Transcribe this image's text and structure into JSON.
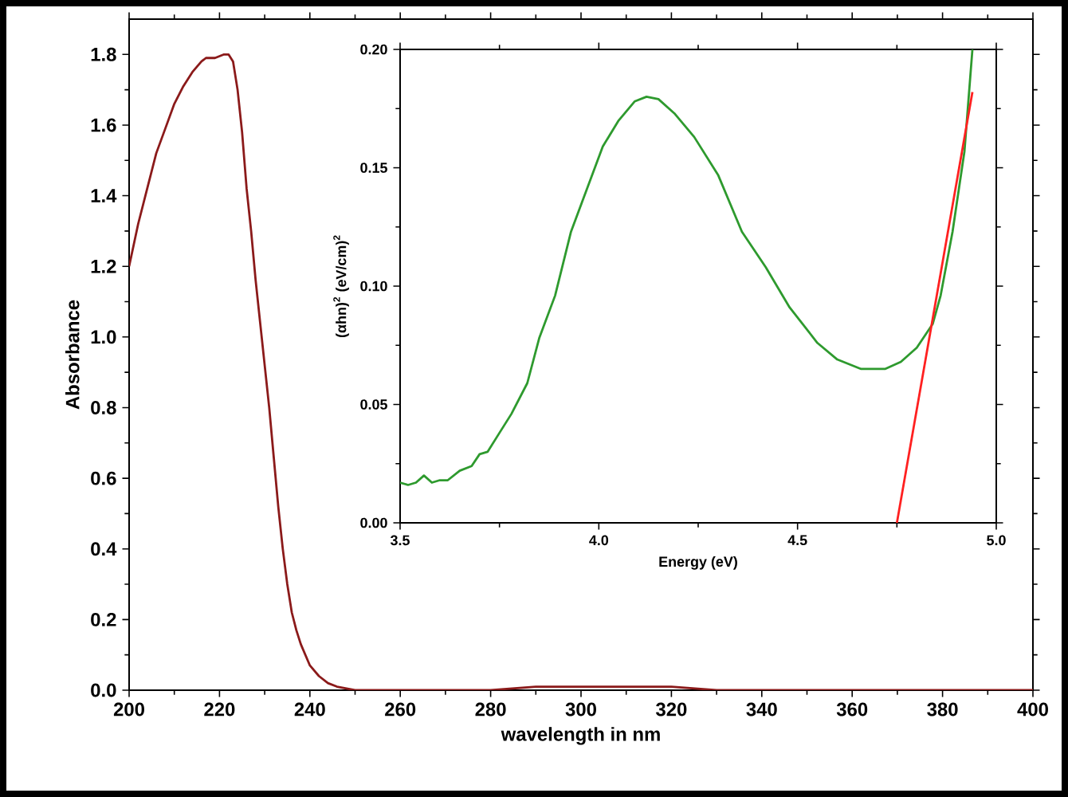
{
  "chart_data": [
    {
      "type": "line",
      "xlabel": "wavelength in nm",
      "ylabel": "Absorbance",
      "xlim": [
        200,
        400
      ],
      "ylim": [
        0,
        1.9
      ],
      "xticks": [
        200,
        220,
        240,
        260,
        280,
        300,
        320,
        340,
        360,
        380,
        400
      ],
      "yticks": [
        {
          "value": 0,
          "label": "0.0"
        },
        0.2,
        0.4,
        0.6,
        0.8,
        {
          "value": 1,
          "label": "1.0"
        },
        1.2,
        1.4,
        1.6,
        1.8
      ],
      "marker": "none",
      "series": [
        {
          "color": "#8b1a1a",
          "x": [
            200,
            202,
            204,
            206,
            208,
            210,
            212,
            214,
            216,
            217,
            219,
            221,
            222,
            223,
            224,
            225,
            226,
            227,
            228,
            229,
            230,
            231,
            232,
            233,
            234,
            235,
            236,
            237,
            238,
            239,
            240,
            242,
            244,
            246,
            250,
            280,
            290,
            320,
            330,
            400
          ],
          "values": [
            1.2,
            1.32,
            1.42,
            1.52,
            1.59,
            1.66,
            1.71,
            1.75,
            1.78,
            1.79,
            1.79,
            1.8,
            1.8,
            1.78,
            1.7,
            1.58,
            1.42,
            1.3,
            1.16,
            1.04,
            0.92,
            0.8,
            0.66,
            0.52,
            0.4,
            0.3,
            0.22,
            0.17,
            0.13,
            0.1,
            0.07,
            0.04,
            0.02,
            0.01,
            0,
            0,
            0.01,
            0.01,
            0,
            0
          ]
        }
      ]
    },
    {
      "type": "line",
      "xlabel": "Energy (eV)",
      "ylabel": "(αhn)$^{2}$ (eV/cm)$^{2}$",
      "xlim": [
        3.5,
        5.0
      ],
      "ylim": [
        0,
        0.2
      ],
      "xticks": [
        3.5,
        {
          "value": 4,
          "label": "4.0"
        },
        4.5,
        {
          "value": 5,
          "label": "5.0"
        }
      ],
      "yticks": [
        {
          "value": 0,
          "label": "0.00"
        },
        {
          "value": 0.05,
          "label": "0.05"
        },
        {
          "value": 0.1,
          "label": "0.10"
        },
        {
          "value": 0.15,
          "label": "0.15"
        },
        {
          "value": 0.2,
          "label": "0.20"
        }
      ],
      "marker": "none",
      "series": [
        {
          "color": "#2e9a2e",
          "x": [
            3.5,
            3.52,
            3.54,
            3.56,
            3.58,
            3.6,
            3.62,
            3.65,
            3.68,
            3.7,
            3.72,
            3.75,
            3.78,
            3.82,
            3.85,
            3.89,
            3.93,
            3.97,
            4.01,
            4.05,
            4.09,
            4.12,
            4.15,
            4.19,
            4.24,
            4.3,
            4.36,
            4.42,
            4.48,
            4.55,
            4.6,
            4.66,
            4.72,
            4.76,
            4.8,
            4.84,
            4.86,
            4.89,
            4.92,
            4.94
          ],
          "values": [
            0.017,
            0.016,
            0.017,
            0.02,
            0.017,
            0.018,
            0.018,
            0.022,
            0.024,
            0.029,
            0.03,
            0.038,
            0.046,
            0.059,
            0.078,
            0.096,
            0.123,
            0.141,
            0.159,
            0.17,
            0.178,
            0.18,
            0.179,
            0.173,
            0.163,
            0.147,
            0.123,
            0.108,
            0.091,
            0.076,
            0.069,
            0.065,
            0.065,
            0.068,
            0.074,
            0.084,
            0.096,
            0.123,
            0.157,
            0.2
          ]
        },
        {
          "type": "line",
          "color": "#ff2020",
          "x": [
            4.94,
            4.75
          ],
          "values": [
            0.182,
            0.0
          ]
        }
      ]
    }
  ]
}
